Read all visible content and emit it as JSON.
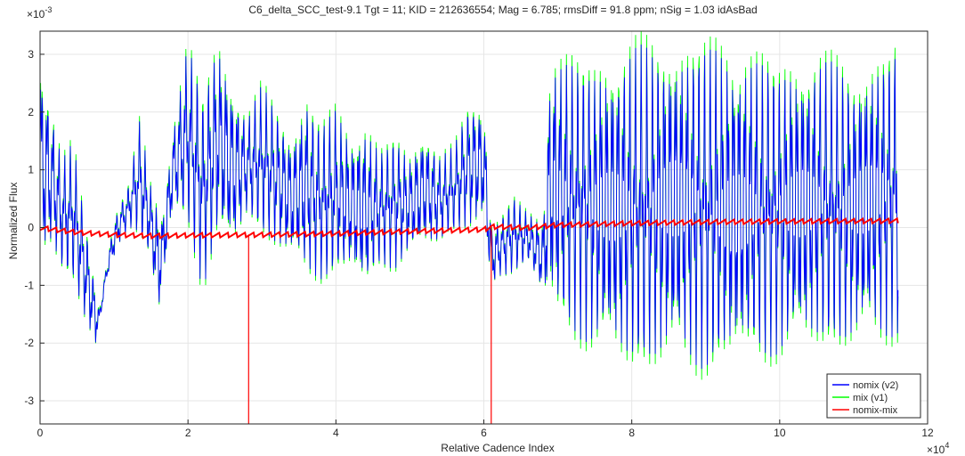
{
  "chart_data": {
    "type": "line",
    "title": "C6_delta_SCC_test-9.1 Tgt = 11; KID = 212636554; Mag = 6.785; rmsDiff = 91.8 ppm; nSig = 1.03 idAsBad",
    "xlabel": "Relative Cadence Index",
    "ylabel": "Normalized Flux",
    "x_exponent": "×10",
    "x_exponent_power": "4",
    "y_exponent": "×10",
    "y_exponent_power": "-3",
    "xlim": [
      0,
      12
    ],
    "ylim": [
      -3.4,
      3.4
    ],
    "x_ticks": [
      "0",
      "2",
      "4",
      "6",
      "8",
      "10",
      "12"
    ],
    "y_ticks": [
      "-3",
      "-2",
      "-1",
      "0",
      "1",
      "2",
      "3"
    ],
    "grid": true,
    "legend_position": "bottom-right",
    "series": [
      {
        "name": "nomix (v2)",
        "color": "#0000ff"
      },
      {
        "name": "mix (v1)",
        "color": "#00ff00"
      },
      {
        "name": "nomix-mix",
        "color": "#ff0000"
      }
    ],
    "envelope_upper": [
      [
        0,
        3.1
      ],
      [
        0.15,
        2.2
      ],
      [
        0.3,
        1.3
      ],
      [
        0.45,
        1.6
      ],
      [
        0.6,
        0.3
      ],
      [
        0.8,
        -1.4
      ],
      [
        1.0,
        0.2
      ],
      [
        1.2,
        0.8
      ],
      [
        1.35,
        2.0
      ],
      [
        1.5,
        0.8
      ],
      [
        1.65,
        0.3
      ],
      [
        1.8,
        1.8
      ],
      [
        2.0,
        3.4
      ],
      [
        2.2,
        2.4
      ],
      [
        2.4,
        3.4
      ],
      [
        2.6,
        2.6
      ],
      [
        2.8,
        2.0
      ],
      [
        3.0,
        2.6
      ],
      [
        3.2,
        2.2
      ],
      [
        3.4,
        1.6
      ],
      [
        3.6,
        2.4
      ],
      [
        3.8,
        1.9
      ],
      [
        4.0,
        2.2
      ],
      [
        4.2,
        1.7
      ],
      [
        4.4,
        1.9
      ],
      [
        4.6,
        1.4
      ],
      [
        4.8,
        1.7
      ],
      [
        5.0,
        1.3
      ],
      [
        5.2,
        1.8
      ],
      [
        5.4,
        1.3
      ],
      [
        5.6,
        1.5
      ],
      [
        5.8,
        2.3
      ],
      [
        6.0,
        2.2
      ],
      [
        6.1,
        0.1
      ],
      [
        6.2,
        0.2
      ],
      [
        6.4,
        0.6
      ],
      [
        6.6,
        0.3
      ],
      [
        6.8,
        0.2
      ],
      [
        6.9,
        3.2
      ],
      [
        7.5,
        3.0
      ],
      [
        8.0,
        3.4
      ],
      [
        8.5,
        3.4
      ],
      [
        9.0,
        3.4
      ],
      [
        9.5,
        3.3
      ],
      [
        10.0,
        3.0
      ],
      [
        10.5,
        3.2
      ],
      [
        11.0,
        2.9
      ],
      [
        11.5,
        3.3
      ]
    ],
    "envelope_lower": [
      [
        0,
        -0.8
      ],
      [
        0.15,
        -0.4
      ],
      [
        0.3,
        -0.8
      ],
      [
        0.45,
        -1.0
      ],
      [
        0.6,
        -1.6
      ],
      [
        0.75,
        -2.1
      ],
      [
        0.9,
        -0.9
      ],
      [
        1.1,
        -0.2
      ],
      [
        1.25,
        0.0
      ],
      [
        1.5,
        -0.6
      ],
      [
        1.6,
        -1.6
      ],
      [
        1.8,
        0.3
      ],
      [
        2.0,
        -0.1
      ],
      [
        2.2,
        -1.2
      ],
      [
        2.4,
        -0.3
      ],
      [
        2.6,
        -0.5
      ],
      [
        2.8,
        0.2
      ],
      [
        3.0,
        -0.2
      ],
      [
        3.2,
        -0.4
      ],
      [
        3.4,
        -0.6
      ],
      [
        3.6,
        -0.9
      ],
      [
        3.8,
        -1.0
      ],
      [
        4.0,
        -0.9
      ],
      [
        4.2,
        -0.8
      ],
      [
        4.4,
        -1.2
      ],
      [
        4.6,
        -0.7
      ],
      [
        4.8,
        -0.8
      ],
      [
        5.0,
        -0.5
      ],
      [
        5.2,
        -0.4
      ],
      [
        5.4,
        -0.3
      ],
      [
        5.6,
        -0.1
      ],
      [
        5.8,
        -0.1
      ],
      [
        6.0,
        0.0
      ],
      [
        6.1,
        -1.1
      ],
      [
        6.2,
        -0.9
      ],
      [
        6.4,
        -0.8
      ],
      [
        6.6,
        -0.6
      ],
      [
        6.8,
        -1.2
      ],
      [
        7.0,
        -1.8
      ],
      [
        7.5,
        -2.3
      ],
      [
        8.0,
        -2.6
      ],
      [
        8.5,
        -2.5
      ],
      [
        9.0,
        -2.7
      ],
      [
        9.5,
        -2.5
      ],
      [
        10.0,
        -2.4
      ],
      [
        10.5,
        -2.2
      ],
      [
        11.0,
        -2.2
      ],
      [
        11.5,
        -2.1
      ]
    ],
    "diff_baseline": [
      [
        0,
        0.0
      ],
      [
        0.5,
        -0.08
      ],
      [
        1.0,
        -0.12
      ],
      [
        1.5,
        -0.14
      ],
      [
        2.0,
        -0.13
      ],
      [
        3.0,
        -0.12
      ],
      [
        4.0,
        -0.1
      ],
      [
        5.0,
        -0.06
      ],
      [
        6.0,
        -0.03
      ],
      [
        6.1,
        0.02
      ],
      [
        6.6,
        0.0
      ],
      [
        7.0,
        0.05
      ],
      [
        8.0,
        0.08
      ],
      [
        9.0,
        0.1
      ],
      [
        10.0,
        0.11
      ],
      [
        11.5,
        0.12
      ]
    ],
    "diff_spikes": [
      [
        2.82,
        -3.4
      ],
      [
        6.1,
        -3.4
      ]
    ]
  }
}
